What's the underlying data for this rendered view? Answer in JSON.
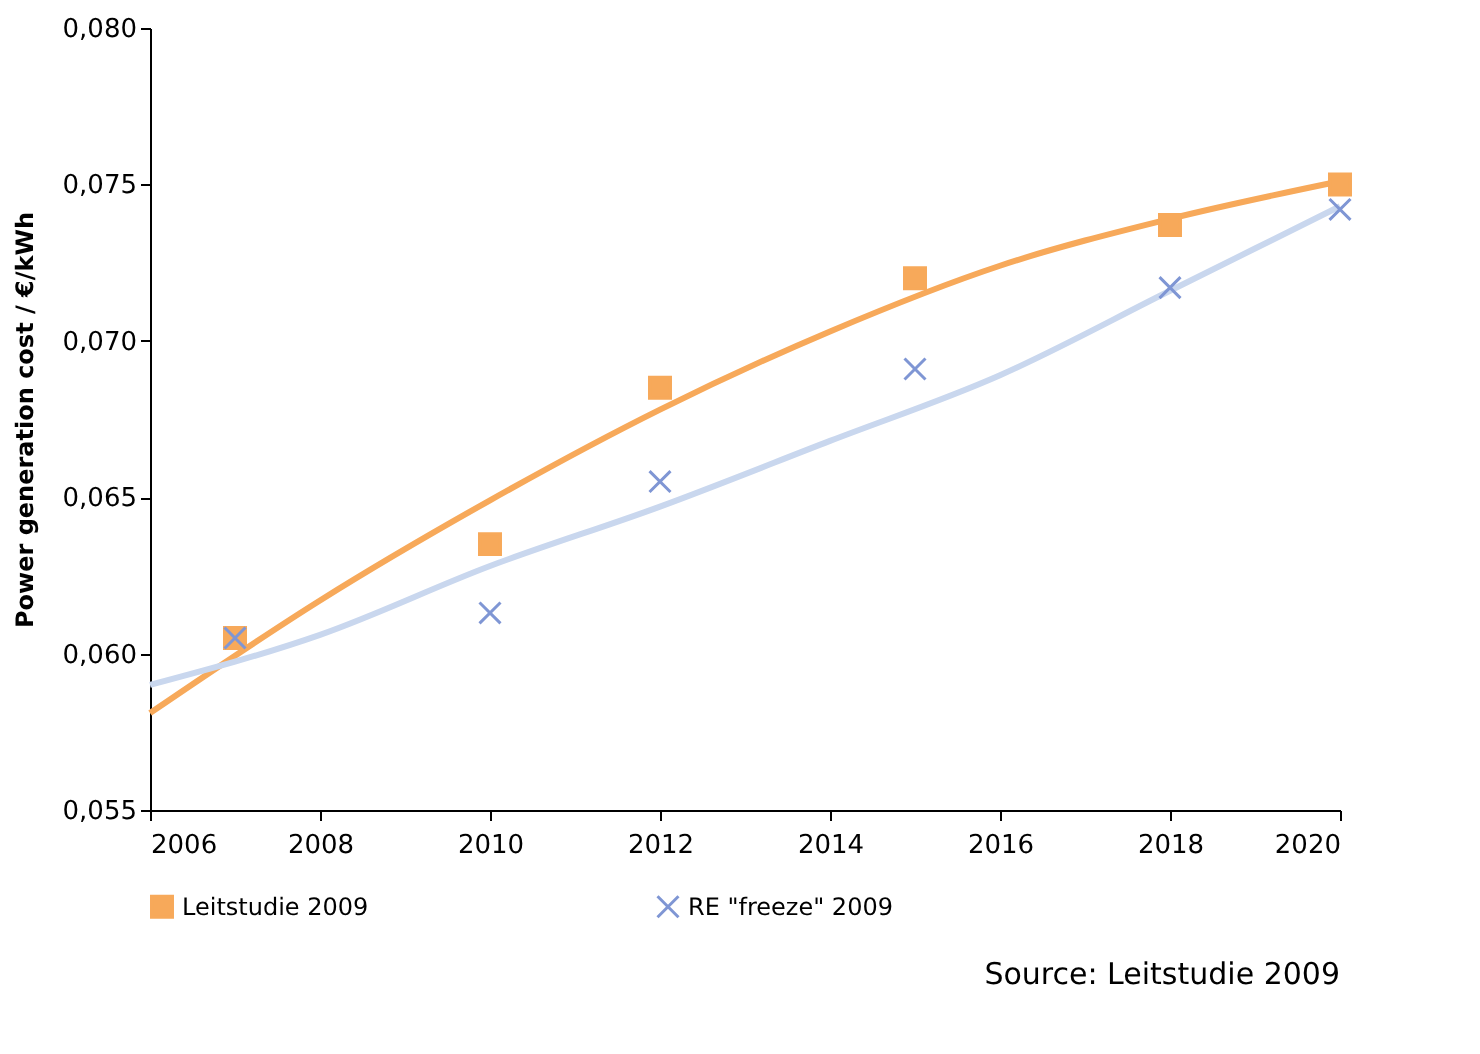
{
  "chart_data": {
    "type": "scatter",
    "ylabel": "Power generation cost / €/kWh",
    "x": [
      2007,
      2010,
      2012,
      2015,
      2018,
      2020
    ],
    "series": [
      {
        "name": "Leitstudie 2009",
        "color": "#f7a95a",
        "marker": "square",
        "values": [
          0.0605,
          0.0635,
          0.0685,
          0.072,
          0.0737,
          0.075
        ]
      },
      {
        "name": "RE \"freeze\" 2009",
        "color": "#7f96d4",
        "marker": "cross",
        "values": [
          0.0605,
          0.0613,
          0.0655,
          0.0691,
          0.0717,
          0.0742
        ]
      },
      {
        "type": "line",
        "color": "#f7a95a",
        "x": [
          2006,
          2008,
          2010,
          2012,
          2014,
          2016,
          2018,
          2020
        ],
        "values": [
          0.0581,
          0.0617,
          0.0649,
          0.0678,
          0.0703,
          0.0724,
          0.0739,
          0.0751
        ]
      },
      {
        "type": "line",
        "color": "#c9d7ee",
        "x": [
          2006,
          2008,
          2010,
          2012,
          2014,
          2016,
          2018,
          2020
        ],
        "values": [
          0.059,
          0.0606,
          0.0628,
          0.0647,
          0.0668,
          0.0689,
          0.0716,
          0.0743
        ]
      }
    ],
    "xlim": [
      2006,
      2020
    ],
    "xticks": [
      2006,
      2008,
      2010,
      2012,
      2014,
      2016,
      2018,
      2020
    ],
    "ylim": [
      0.055,
      0.08
    ],
    "yticks": [
      {
        "value": 0.055,
        "label": "0,055"
      },
      {
        "value": 0.06,
        "label": "0,060"
      },
      {
        "value": 0.065,
        "label": "0,065"
      },
      {
        "value": 0.07,
        "label": "0,070"
      },
      {
        "value": 0.075,
        "label": "0,075"
      },
      {
        "value": 0.08,
        "label": "0,080"
      }
    ],
    "grid": false,
    "legend": "bottom",
    "annotations": [
      "Source: Leitstudie 2009"
    ]
  }
}
